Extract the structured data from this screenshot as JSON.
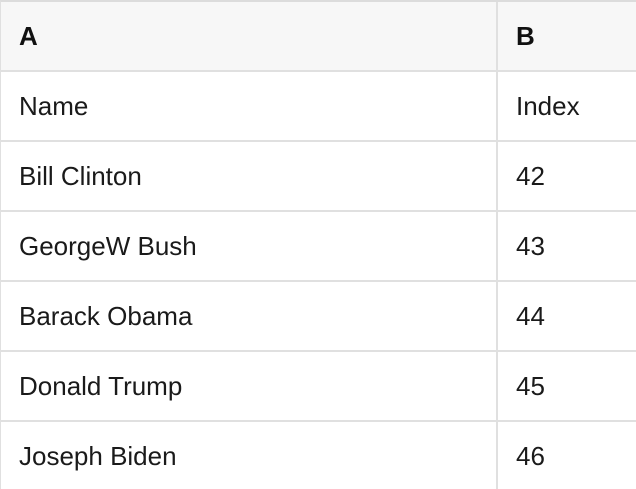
{
  "table": {
    "column_headers": [
      {
        "label": "A"
      },
      {
        "label": "B"
      }
    ],
    "rows": [
      {
        "A": "Name",
        "B": "Index"
      },
      {
        "A": "Bill Clinton",
        "B": "42"
      },
      {
        "A": "GeorgeW Bush",
        "B": "43"
      },
      {
        "A": "Barack Obama",
        "B": "44"
      },
      {
        "A": "Donald Trump",
        "B": "45"
      },
      {
        "A": "Joseph Biden",
        "B": "46"
      }
    ],
    "colors": {
      "header_bg": "#f7f7f7",
      "border": "#e0e0e0",
      "border_top": "#dcdcdc",
      "text": "#1a1a1a",
      "header_text": "#111111",
      "row_bg": "#ffffff"
    }
  }
}
